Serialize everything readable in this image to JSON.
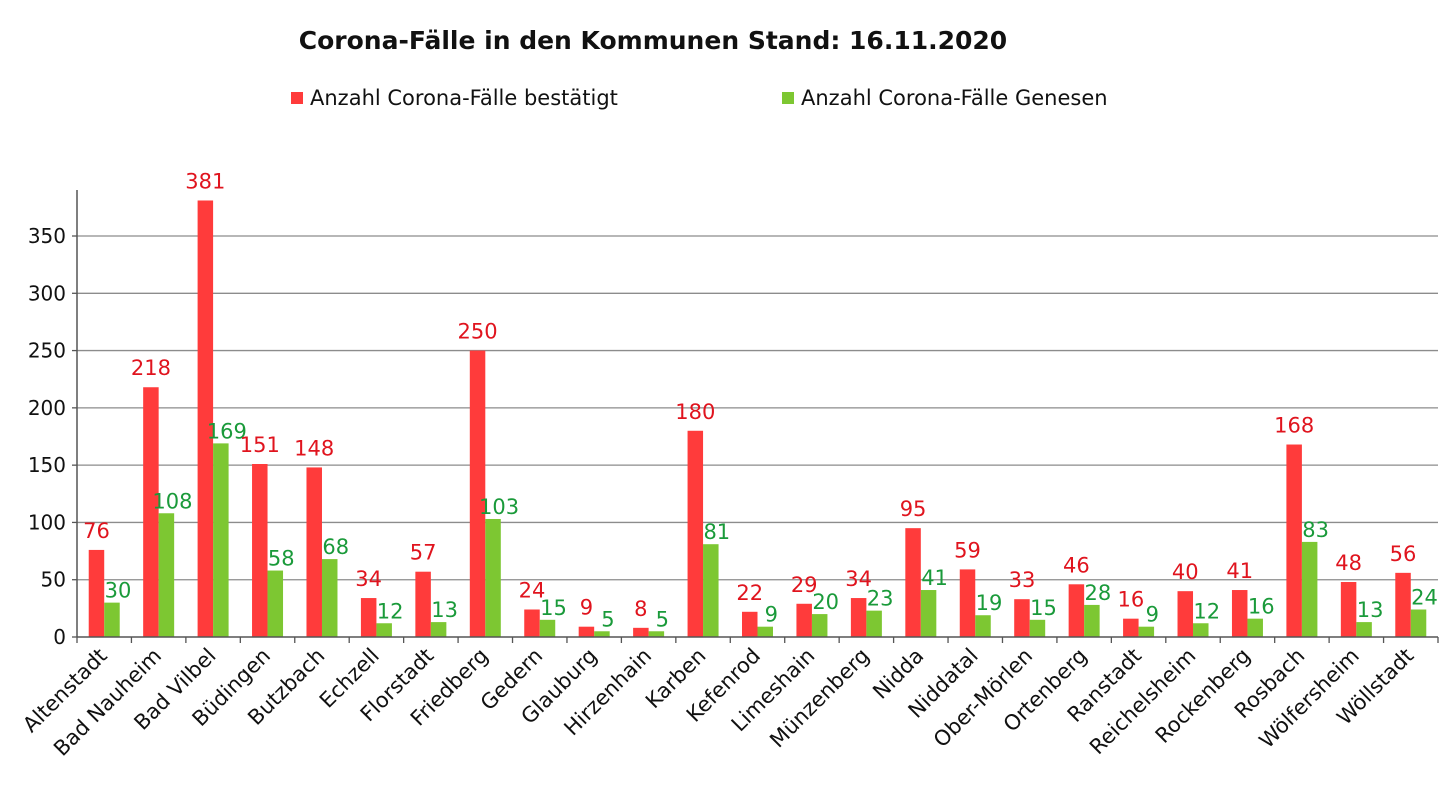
{
  "chart_data": {
    "type": "bar",
    "title": "Corona-Fälle in den Kommunen Stand: 16.11.2020",
    "categories": [
      "Altenstadt",
      "Bad Nauheim",
      "Bad Vilbel",
      "Büdingen",
      "Butzbach",
      "Echzell",
      "Florstadt",
      "Friedberg",
      "Gedern",
      "Glauburg",
      "Hirzenhain",
      "Karben",
      "Kefenrod",
      "Limeshain",
      "Münzenberg",
      "Nidda",
      "Niddatal",
      "Ober-Mörlen",
      "Ortenberg",
      "Ranstadt",
      "Reichelsheim",
      "Rockenberg",
      "Rosbach",
      "Wölfersheim",
      "Wöllstadt"
    ],
    "series": [
      {
        "name": "Anzahl Corona-Fälle bestätigt",
        "color": "#ff3b3b",
        "label_color": "#e0141e",
        "values": [
          76,
          218,
          381,
          151,
          148,
          34,
          57,
          250,
          24,
          9,
          8,
          180,
          22,
          29,
          34,
          95,
          59,
          33,
          46,
          16,
          40,
          41,
          168,
          48,
          56
        ]
      },
      {
        "name": "Anzahl Corona-Fälle Genesen",
        "color": "#7dc732",
        "label_color": "#1a9a3a",
        "values": [
          30,
          108,
          169,
          58,
          68,
          12,
          13,
          103,
          15,
          5,
          5,
          81,
          9,
          20,
          23,
          41,
          19,
          15,
          28,
          9,
          12,
          16,
          83,
          13,
          24
        ]
      }
    ],
    "yticks": [
      0,
      50,
      100,
      150,
      200,
      250,
      300,
      350
    ],
    "ylim": [
      0,
      390
    ],
    "grid": true,
    "legend_position": "top",
    "xlabel": "",
    "ylabel": ""
  }
}
